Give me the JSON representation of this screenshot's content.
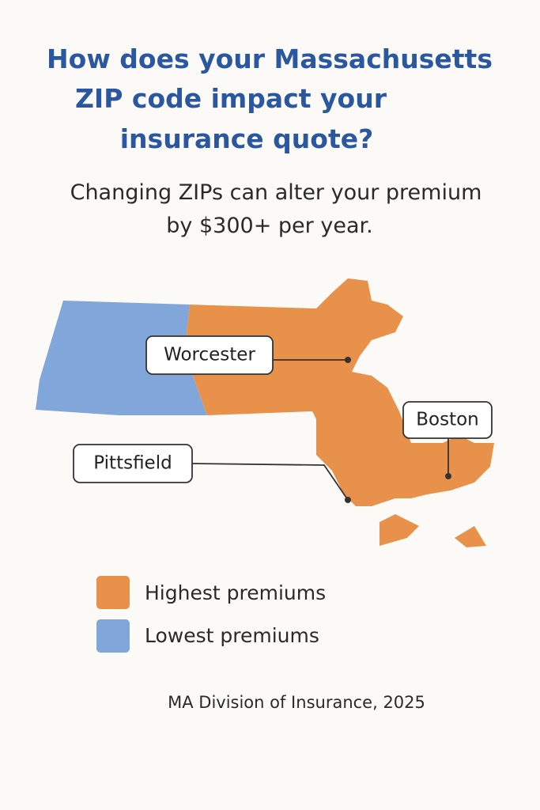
{
  "title_lines": [
    "How does your Massachusetts",
    "ZIP code impact your",
    "insurance quote?"
  ],
  "subtitle_lines": [
    "Changing ZIPs can alter your premium",
    "by $300+ per year."
  ],
  "map_labels": [
    "Worcester",
    "Boston",
    "Pittsfield"
  ],
  "legend": [
    {
      "label": "Highest premiums",
      "color": "#e8914a"
    },
    {
      "label": "Lowest premiums",
      "color": "#80a6da"
    }
  ],
  "source": "MA Division of Insurance, 2025"
}
